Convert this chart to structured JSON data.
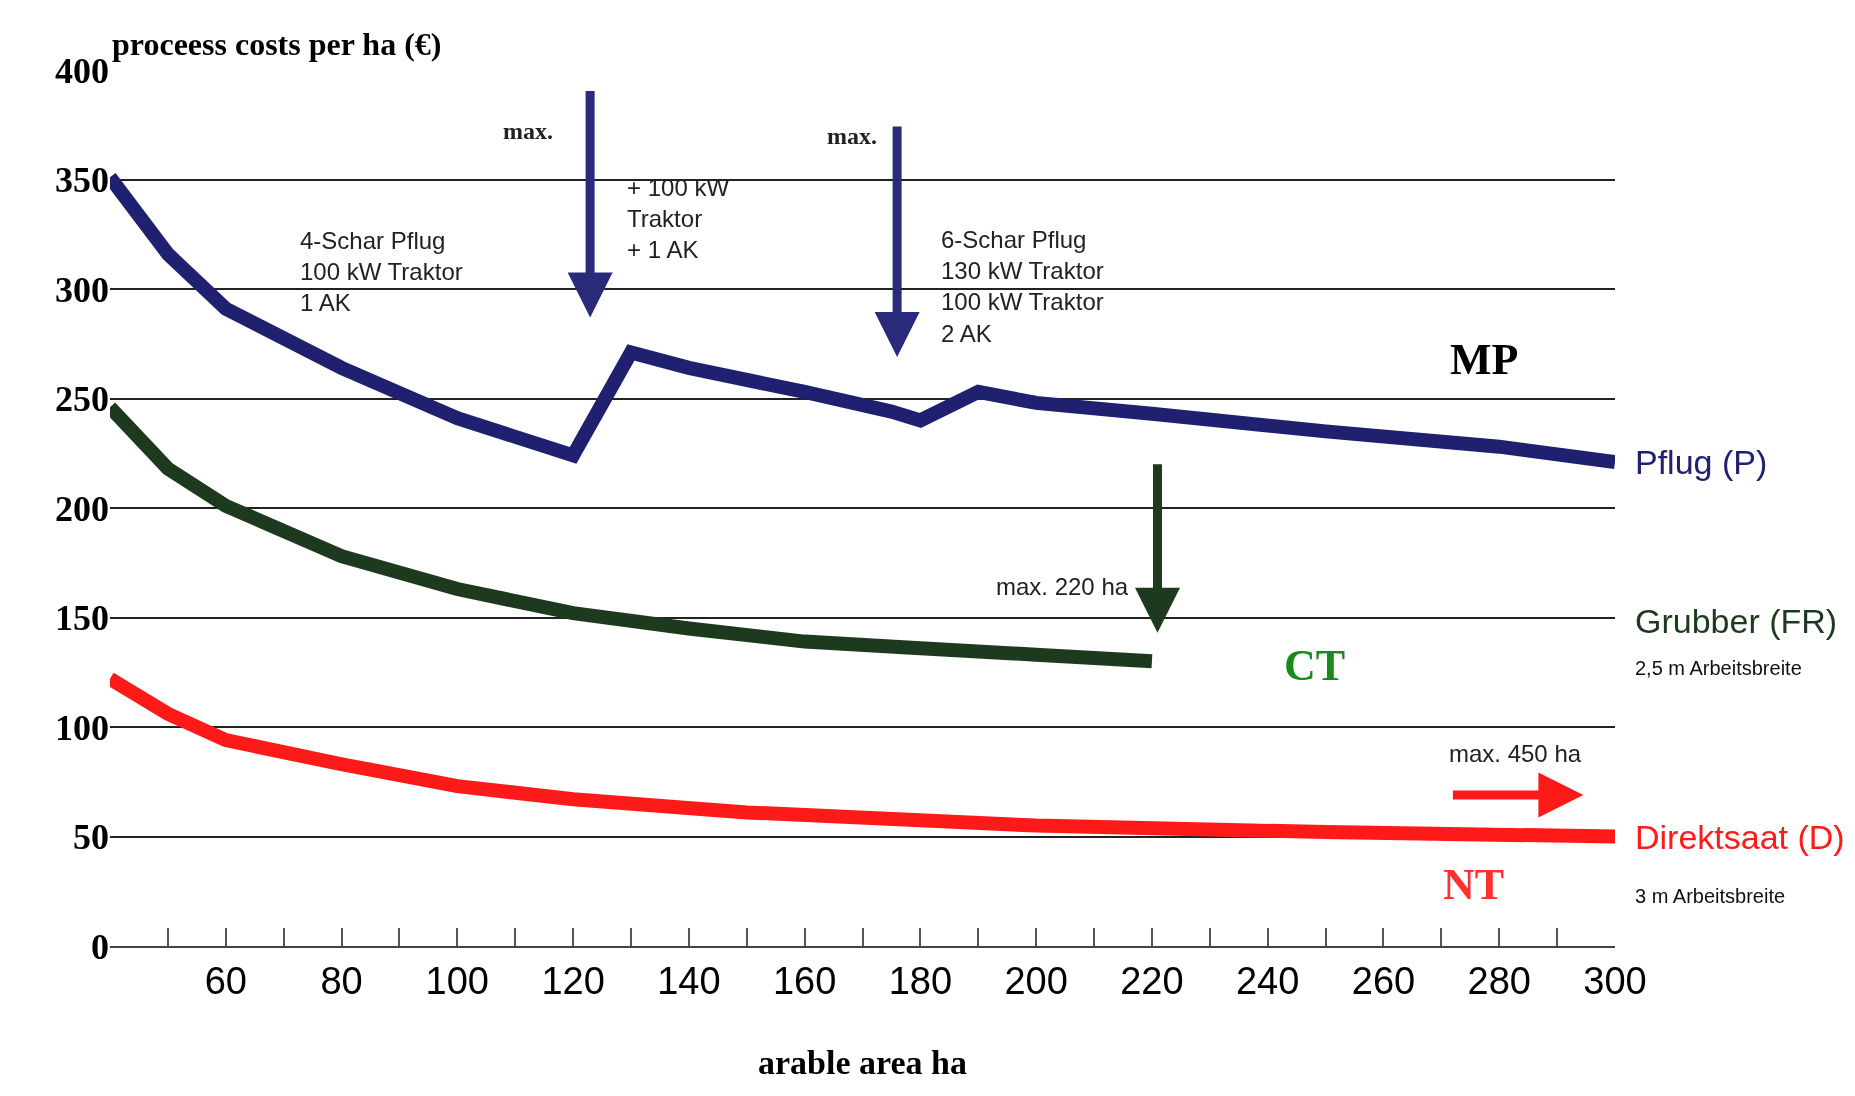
{
  "chart_data": {
    "type": "line",
    "xlabel": "arable area ha",
    "ylabel": "proceess costs per ha (€)",
    "xlim": [
      40,
      300
    ],
    "ylim": [
      0,
      400
    ],
    "xticks": [
      60,
      80,
      100,
      120,
      140,
      160,
      180,
      200,
      220,
      240,
      260,
      280,
      300
    ],
    "yticks": [
      0,
      50,
      100,
      150,
      200,
      250,
      300,
      350,
      400
    ],
    "grid": "y",
    "legend": false,
    "marker": "none",
    "line_style": "solid",
    "series": [
      {
        "name": "Pflug (P)",
        "color": "#1f2070",
        "x": [
          40,
          50,
          60,
          80,
          100,
          120,
          130,
          140,
          160,
          175,
          180,
          190,
          200,
          220,
          250,
          280,
          300
        ],
        "values": [
          351,
          316,
          291,
          264,
          241,
          224,
          271,
          264,
          253,
          244,
          240,
          253,
          248,
          243,
          235,
          228,
          221
        ]
      },
      {
        "name": "Grubber (FR)",
        "color": "#1e3a1e",
        "x": [
          40,
          50,
          60,
          80,
          100,
          120,
          140,
          160,
          180,
          200,
          220
        ],
        "values": [
          246,
          218,
          201,
          178,
          163,
          152,
          145,
          139,
          136,
          133,
          130
        ]
      },
      {
        "name": "Direktsaat (D)",
        "color": "#ff1a1a",
        "x": [
          40,
          50,
          60,
          80,
          100,
          120,
          150,
          200,
          250,
          300
        ],
        "values": [
          122,
          106,
          94,
          83,
          73,
          67,
          61,
          55,
          52,
          50
        ]
      }
    ],
    "annotations": [
      "max.",
      "max.",
      "max. 220 ha",
      "max. 450 ha",
      "4-Schar Pflug\n100 kW Traktor\n1 AK",
      "+ 100 kW\nTraktor\n+ 1 AK",
      "6-Schar Pflug\n130 kW Traktor\n100 kW Traktor\n2 AK",
      "MP",
      "CT",
      "NT",
      "2,5 m Arbeitsbreite",
      "3 m Arbeitsbreite"
    ]
  }
}
